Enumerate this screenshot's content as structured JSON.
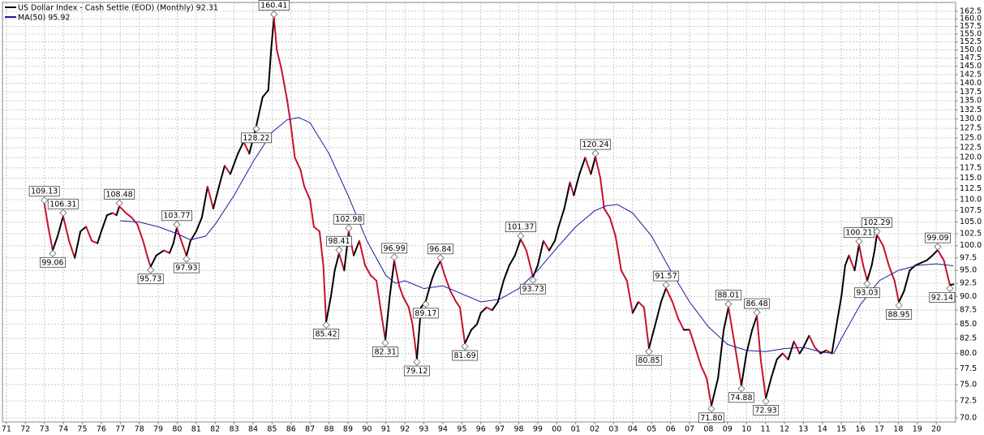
{
  "chart_data": {
    "type": "line",
    "series": [
      {
        "name": "US Dollar Index - Cash Settle (EOD) (Monthly) 92.31",
        "color": "#000000",
        "down_color": "#c8102e",
        "x": [
          1973.0,
          1973.2,
          1973.44,
          1973.7,
          1973.99,
          1974.3,
          1974.6,
          1974.9,
          1975.2,
          1975.5,
          1975.8,
          1976.0,
          1976.3,
          1976.6,
          1976.8,
          1976.95,
          1977.3,
          1977.6,
          1977.9,
          1978.2,
          1978.45,
          1978.6,
          1978.9,
          1979.3,
          1979.6,
          1979.8,
          1979.98,
          1980.49,
          1980.7,
          1981.0,
          1981.3,
          1981.6,
          1981.9,
          1982.2,
          1982.5,
          1982.8,
          1983.2,
          1983.5,
          1983.8,
          1984.17,
          1984.5,
          1984.8,
          1984.95,
          1985.1,
          1985.25,
          1985.5,
          1985.8,
          1986.0,
          1986.2,
          1986.5,
          1986.7,
          1987.0,
          1987.2,
          1987.5,
          1987.7,
          1987.85,
          1988.1,
          1988.3,
          1988.53,
          1988.8,
          1989.04,
          1989.3,
          1989.6,
          1989.9,
          1990.2,
          1990.5,
          1990.75,
          1990.97,
          1991.2,
          1991.44,
          1991.7,
          1991.9,
          1992.2,
          1992.4,
          1992.63,
          1992.85,
          1993.1,
          1993.4,
          1993.6,
          1993.87,
          1994.1,
          1994.4,
          1994.7,
          1994.9,
          1995.16,
          1995.5,
          1995.8,
          1996.0,
          1996.3,
          1996.6,
          1996.9,
          1997.2,
          1997.5,
          1997.8,
          1998.1,
          1998.4,
          1998.75,
          1999.0,
          1999.3,
          1999.6,
          1999.9,
          2000.1,
          2000.4,
          2000.7,
          2000.9,
          2001.2,
          2001.5,
          2001.8,
          2002.04,
          2002.3,
          2002.5,
          2002.8,
          2003.1,
          2003.4,
          2003.7,
          2004.0,
          2004.3,
          2004.6,
          2004.86,
          2005.2,
          2005.5,
          2005.76,
          2006.1,
          2006.4,
          2006.7,
          2007.0,
          2007.3,
          2007.6,
          2007.9,
          2008.15,
          2008.5,
          2008.8,
          2009.05,
          2009.35,
          2009.73,
          2010.0,
          2010.3,
          2010.55,
          2010.75,
          2011.02,
          2011.3,
          2011.6,
          2011.9,
          2012.2,
          2012.5,
          2012.8,
          2013.0,
          2013.3,
          2013.6,
          2013.9,
          2014.2,
          2014.5,
          2014.7,
          2015.0,
          2015.2,
          2015.4,
          2015.7,
          2015.93,
          2016.15,
          2016.36,
          2016.6,
          2016.75,
          2016.87,
          2017.2,
          2017.5,
          2017.8,
          2018.03,
          2018.3,
          2018.6,
          2018.9,
          2019.2,
          2019.5,
          2019.8,
          2020.08,
          2020.4,
          2020.72,
          2020.9
        ],
        "values": [
          109.13,
          104,
          99.06,
          102,
          106.31,
          101,
          97.5,
          103,
          104,
          101,
          100.5,
          103,
          106.5,
          107,
          106.5,
          108.48,
          107,
          106,
          104.5,
          101,
          97.5,
          95.73,
          98,
          99,
          98.5,
          100.5,
          103.77,
          97.93,
          101,
          103,
          106,
          113,
          108,
          113,
          118,
          116,
          121,
          124,
          121,
          128.22,
          136,
          138,
          150,
          160.41,
          150,
          144,
          135,
          128,
          120,
          117,
          113,
          110,
          104,
          103,
          96,
          85.42,
          90,
          95,
          98.41,
          95,
          102.98,
          98,
          101,
          96,
          94,
          93,
          87,
          82.31,
          90,
          96.99,
          92,
          90,
          88,
          85,
          79.12,
          88,
          89.17,
          93,
          95,
          96.84,
          94,
          91,
          89,
          88,
          81.69,
          84,
          85,
          87,
          88,
          87.5,
          89,
          93,
          96,
          98,
          101.37,
          99,
          93.73,
          96,
          101,
          99,
          101,
          104,
          108,
          114,
          111,
          116,
          120,
          116,
          120.24,
          115,
          108,
          106,
          102,
          95,
          93,
          87,
          89,
          88,
          80.85,
          85,
          89,
          91.57,
          89,
          86,
          84,
          84,
          81,
          78,
          76,
          71.8,
          76,
          84,
          88.01,
          82,
          74.88,
          80,
          84,
          86.48,
          79,
          72.93,
          76,
          79,
          80,
          79,
          82,
          80,
          81,
          83,
          81,
          80,
          80.5,
          80,
          84,
          90,
          96,
          98,
          95,
          100.21,
          96,
          93.03,
          96,
          99,
          102.29,
          100,
          96,
          93,
          88.95,
          91,
          95,
          96,
          96.5,
          97,
          98,
          99.09,
          97,
          92.14,
          92.31
        ]
      },
      {
        "name": "MA(50) 95.92",
        "color": "#1a1a9c",
        "x": [
          1977.0,
          1978.0,
          1979.0,
          1980.0,
          1980.7,
          1981.5,
          1982.0,
          1983.0,
          1984.0,
          1985.0,
          1985.8,
          1986.4,
          1987.0,
          1988.0,
          1989.0,
          1990.0,
          1991.0,
          1991.5,
          1992.0,
          1993.0,
          1994.0,
          1995.0,
          1996.0,
          1997.0,
          1998.0,
          1999.0,
          2000.0,
          2001.0,
          2002.0,
          2002.6,
          2003.2,
          2004.0,
          2005.0,
          2006.0,
          2007.0,
          2008.0,
          2009.0,
          2010.0,
          2011.0,
          2012.0,
          2013.0,
          2014.0,
          2014.6,
          2015.0,
          2016.0,
          2017.0,
          2018.0,
          2019.0,
          2020.0,
          2020.9
        ],
        "values": [
          105.3,
          105,
          104,
          102.5,
          101.2,
          102,
          104.5,
          111,
          119,
          126.5,
          129.8,
          130.4,
          129,
          121,
          111,
          101,
          94,
          92.5,
          93,
          91.5,
          92,
          90.5,
          89,
          89.5,
          91.5,
          95,
          99.5,
          104,
          107.5,
          108.6,
          108.9,
          107,
          102,
          95,
          89,
          84.5,
          81.5,
          80.5,
          80.3,
          80.8,
          81,
          80.2,
          80,
          82.5,
          88.5,
          93,
          95,
          96,
          96.3,
          95.92
        ]
      }
    ],
    "annotations": [
      {
        "x": 1973.0,
        "value": 109.13,
        "position": "above"
      },
      {
        "x": 1973.44,
        "value": 99.06,
        "position": "below"
      },
      {
        "x": 1973.99,
        "value": 106.31,
        "position": "above"
      },
      {
        "x": 1976.95,
        "value": 108.48,
        "position": "above"
      },
      {
        "x": 1978.6,
        "value": 95.73,
        "position": "below"
      },
      {
        "x": 1979.98,
        "value": 103.77,
        "position": "above"
      },
      {
        "x": 1980.49,
        "value": 97.93,
        "position": "below"
      },
      {
        "x": 1984.17,
        "value": 128.22,
        "position": "below"
      },
      {
        "x": 1985.1,
        "value": 160.41,
        "position": "above"
      },
      {
        "x": 1987.85,
        "value": 85.42,
        "position": "below"
      },
      {
        "x": 1988.53,
        "value": 98.41,
        "position": "above"
      },
      {
        "x": 1989.04,
        "value": 102.98,
        "position": "above"
      },
      {
        "x": 1990.97,
        "value": 82.31,
        "position": "below"
      },
      {
        "x": 1991.44,
        "value": 96.99,
        "position": "above"
      },
      {
        "x": 1992.63,
        "value": 79.12,
        "position": "below"
      },
      {
        "x": 1993.1,
        "value": 89.17,
        "position": "below"
      },
      {
        "x": 1993.87,
        "value": 96.84,
        "position": "above"
      },
      {
        "x": 1995.16,
        "value": 81.69,
        "position": "below"
      },
      {
        "x": 1998.1,
        "value": 101.37,
        "position": "above"
      },
      {
        "x": 1998.75,
        "value": 93.73,
        "position": "below"
      },
      {
        "x": 2002.04,
        "value": 120.24,
        "position": "above"
      },
      {
        "x": 2004.86,
        "value": 80.85,
        "position": "below"
      },
      {
        "x": 2005.76,
        "value": 91.57,
        "position": "above"
      },
      {
        "x": 2008.15,
        "value": 71.8,
        "label": "71.80",
        "position": "below"
      },
      {
        "x": 2009.05,
        "value": 88.01,
        "position": "above"
      },
      {
        "x": 2009.73,
        "value": 74.88,
        "position": "below"
      },
      {
        "x": 2010.55,
        "value": 86.48,
        "position": "above"
      },
      {
        "x": 2011.02,
        "value": 72.93,
        "position": "below"
      },
      {
        "x": 2015.93,
        "value": 100.21,
        "position": "above"
      },
      {
        "x": 2016.36,
        "value": 93.03,
        "position": "below"
      },
      {
        "x": 2016.87,
        "value": 102.29,
        "position": "above"
      },
      {
        "x": 2018.03,
        "value": 88.95,
        "position": "below"
      },
      {
        "x": 2020.08,
        "value": 99.09,
        "position": "above"
      },
      {
        "x": 2020.72,
        "value": 92.14,
        "position": "below"
      }
    ],
    "log_y": true,
    "grid": true,
    "xlim": [
      1970.79,
      2021.02
    ],
    "ylim": [
      69.4,
      165.5
    ],
    "xticks": [
      {
        "value": 1971,
        "label": "71"
      },
      {
        "value": 1972,
        "label": "72"
      },
      {
        "value": 1973,
        "label": "73"
      },
      {
        "value": 1974,
        "label": "74"
      },
      {
        "value": 1975,
        "label": "75"
      },
      {
        "value": 1976,
        "label": "76"
      },
      {
        "value": 1977,
        "label": "77"
      },
      {
        "value": 1978,
        "label": "78"
      },
      {
        "value": 1979,
        "label": "79"
      },
      {
        "value": 1980,
        "label": "80"
      },
      {
        "value": 1981,
        "label": "81"
      },
      {
        "value": 1982,
        "label": "82"
      },
      {
        "value": 1983,
        "label": "83"
      },
      {
        "value": 1984,
        "label": "84"
      },
      {
        "value": 1985,
        "label": "85"
      },
      {
        "value": 1986,
        "label": "86"
      },
      {
        "value": 1987,
        "label": "87"
      },
      {
        "value": 1988,
        "label": "88"
      },
      {
        "value": 1989,
        "label": "89"
      },
      {
        "value": 1990,
        "label": "90"
      },
      {
        "value": 1991,
        "label": "91"
      },
      {
        "value": 1992,
        "label": "92"
      },
      {
        "value": 1993,
        "label": "93"
      },
      {
        "value": 1994,
        "label": "94"
      },
      {
        "value": 1995,
        "label": "95"
      },
      {
        "value": 1996,
        "label": "96"
      },
      {
        "value": 1997,
        "label": "97"
      },
      {
        "value": 1998,
        "label": "98"
      },
      {
        "value": 1999,
        "label": "99"
      },
      {
        "value": 2000,
        "label": "00"
      },
      {
        "value": 2001,
        "label": "01"
      },
      {
        "value": 2002,
        "label": "02"
      },
      {
        "value": 2003,
        "label": "03"
      },
      {
        "value": 2004,
        "label": "04"
      },
      {
        "value": 2005,
        "label": "05"
      },
      {
        "value": 2006,
        "label": "06"
      },
      {
        "value": 2007,
        "label": "07"
      },
      {
        "value": 2008,
        "label": "08"
      },
      {
        "value": 2009,
        "label": "09"
      },
      {
        "value": 2010,
        "label": "10"
      },
      {
        "value": 2011,
        "label": "11"
      },
      {
        "value": 2012,
        "label": "12"
      },
      {
        "value": 2013,
        "label": "13"
      },
      {
        "value": 2014,
        "label": "14"
      },
      {
        "value": 2015,
        "label": "15"
      },
      {
        "value": 2016,
        "label": "16"
      },
      {
        "value": 2017,
        "label": "17"
      },
      {
        "value": 2018,
        "label": "18"
      },
      {
        "value": 2019,
        "label": "19"
      },
      {
        "value": 2020,
        "label": "20"
      }
    ],
    "yticks": [
      {
        "value": 70,
        "label": "70.0"
      },
      72.5,
      {
        "value": 75,
        "label": "75.0"
      },
      77.5,
      {
        "value": 80,
        "label": "80.0"
      },
      82.5,
      {
        "value": 85,
        "label": "85.0"
      },
      87.5,
      {
        "value": 90,
        "label": "90.0"
      },
      92.5,
      {
        "value": 95,
        "label": "95.0"
      },
      97.5,
      {
        "value": 100,
        "label": "100.0"
      },
      102.5,
      {
        "value": 105,
        "label": "105.0"
      },
      107.5,
      {
        "value": 110,
        "label": "110.0"
      },
      112.5,
      {
        "value": 115,
        "label": "115.0"
      },
      117.5,
      {
        "value": 120,
        "label": "120.0"
      },
      122.5,
      {
        "value": 125,
        "label": "125.0"
      },
      127.5,
      {
        "value": 130,
        "label": "130.0"
      },
      132.5,
      {
        "value": 135,
        "label": "135.0"
      },
      137.5,
      {
        "value": 140,
        "label": "140.0"
      },
      142.5,
      {
        "value": 145,
        "label": "145.0"
      },
      147.5,
      {
        "value": 150,
        "label": "150.0"
      },
      152.5,
      {
        "value": 155,
        "label": "155.0"
      },
      157.5,
      {
        "value": 160,
        "label": "160.0"
      },
      162.5
    ]
  }
}
